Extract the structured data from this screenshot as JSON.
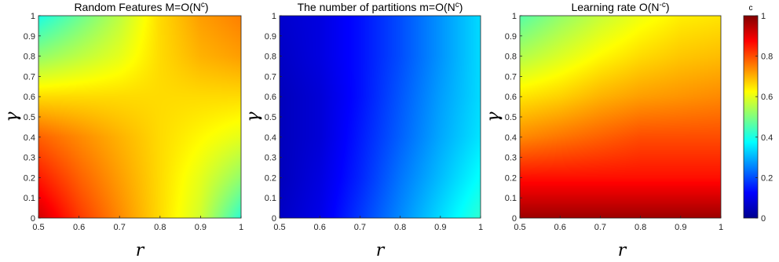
{
  "chart_data": [
    {
      "type": "heatmap",
      "title": "Random Features M=O(N",
      "title_superscript": "c",
      "title_close": ")",
      "xlabel": "r",
      "ylabel": "γ",
      "xlim": [
        0.5,
        1
      ],
      "ylim": [
        0,
        1
      ],
      "xticks": [
        "0.5",
        "0.6",
        "0.7",
        "0.8",
        "0.9",
        "1"
      ],
      "yticks": [
        "0",
        "0.1",
        "0.2",
        "0.3",
        "0.4",
        "0.5",
        "0.6",
        "0.7",
        "0.8",
        "0.9",
        "1"
      ],
      "value_grid": {
        "r": [
          0.5,
          0.6,
          0.7,
          0.8,
          0.9,
          1.0
        ],
        "gamma": [
          0,
          0.2,
          0.4,
          0.6,
          0.8,
          1.0
        ],
        "rows": [
          [
            0.92,
            0.82,
            0.74,
            0.66,
            0.58,
            0.42
          ],
          [
            0.85,
            0.78,
            0.72,
            0.66,
            0.6,
            0.52
          ],
          [
            0.78,
            0.74,
            0.7,
            0.66,
            0.63,
            0.6
          ],
          [
            0.66,
            0.66,
            0.66,
            0.66,
            0.66,
            0.66
          ],
          [
            0.52,
            0.56,
            0.6,
            0.66,
            0.7,
            0.72
          ],
          [
            0.4,
            0.48,
            0.56,
            0.66,
            0.72,
            0.75
          ]
        ]
      }
    },
    {
      "type": "heatmap",
      "title": "The number of partitions m=O(N",
      "title_superscript": "c",
      "title_close": ")",
      "xlabel": "r",
      "ylabel": "γ",
      "xlim": [
        0.5,
        1
      ],
      "ylim": [
        0,
        1
      ],
      "xticks": [
        "0.5",
        "0.6",
        "0.7",
        "0.8",
        "0.9",
        "1"
      ],
      "yticks": [
        "0",
        "0.1",
        "0.2",
        "0.3",
        "0.4",
        "0.5",
        "0.6",
        "0.7",
        "0.8",
        "0.9",
        "1"
      ],
      "value_grid": {
        "r": [
          0.5,
          0.6,
          0.7,
          0.8,
          0.9,
          1.0
        ],
        "gamma": [
          0,
          0.2,
          0.4,
          0.6,
          0.8,
          1.0
        ],
        "rows": [
          [
            0.06,
            0.1,
            0.18,
            0.26,
            0.34,
            0.42
          ],
          [
            0.05,
            0.09,
            0.16,
            0.24,
            0.31,
            0.38
          ],
          [
            0.05,
            0.08,
            0.15,
            0.22,
            0.29,
            0.35
          ],
          [
            0.05,
            0.08,
            0.14,
            0.21,
            0.28,
            0.34
          ],
          [
            0.06,
            0.09,
            0.14,
            0.2,
            0.27,
            0.34
          ],
          [
            0.07,
            0.09,
            0.14,
            0.2,
            0.27,
            0.34
          ]
        ]
      }
    },
    {
      "type": "heatmap",
      "title": "Learning rate O(N",
      "title_superscript": "-c",
      "title_close": ")",
      "xlabel": "r",
      "ylabel": "γ",
      "xlim": [
        0.5,
        1
      ],
      "ylim": [
        0,
        1
      ],
      "xticks": [
        "0.5",
        "0.6",
        "0.7",
        "0.8",
        "0.9",
        "1"
      ],
      "yticks": [
        "0",
        "0.1",
        "0.2",
        "0.3",
        "0.4",
        "0.5",
        "0.6",
        "0.7",
        "0.8",
        "0.9",
        "1"
      ],
      "value_grid": {
        "r": [
          0.5,
          0.6,
          0.7,
          0.8,
          0.9,
          1.0
        ],
        "gamma": [
          0,
          0.2,
          0.4,
          0.6,
          0.8,
          1.0
        ],
        "rows": [
          [
            0.97,
            0.97,
            0.97,
            0.97,
            0.97,
            0.97
          ],
          [
            0.86,
            0.86,
            0.86,
            0.86,
            0.86,
            0.86
          ],
          [
            0.74,
            0.76,
            0.78,
            0.8,
            0.8,
            0.8
          ],
          [
            0.65,
            0.67,
            0.7,
            0.72,
            0.73,
            0.74
          ],
          [
            0.55,
            0.59,
            0.63,
            0.66,
            0.68,
            0.69
          ],
          [
            0.46,
            0.52,
            0.57,
            0.61,
            0.64,
            0.65
          ]
        ]
      }
    }
  ],
  "colorbar": {
    "label": "c",
    "range": [
      0,
      1
    ],
    "ticks": [
      "0",
      "0.2",
      "0.4",
      "0.6",
      "0.8",
      "1"
    ],
    "colormap": "jet"
  }
}
